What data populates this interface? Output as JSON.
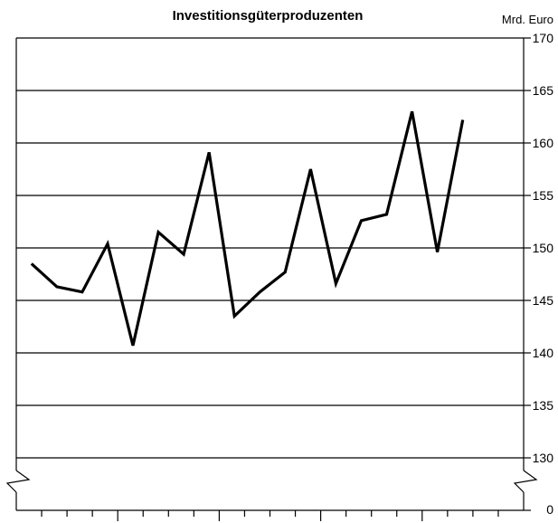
{
  "chart_data": {
    "type": "line",
    "title": "Investitionsgüterproduzenten",
    "unit_label": "Mrd. Euro",
    "y_ticks": [
      130,
      135,
      140,
      145,
      150,
      155,
      160,
      165,
      170
    ],
    "y_zero_label": "0",
    "ylim": [
      130,
      170
    ],
    "axis_break": true,
    "grid": true,
    "x_tick_count": 20,
    "x_major_every": 4,
    "series": [
      {
        "values": [
          148.5,
          146.3,
          145.8,
          150.4,
          140.7,
          151.5,
          149.4,
          159.1,
          143.5,
          145.8,
          147.7,
          157.5,
          146.6,
          152.6,
          153.2,
          163.0,
          149.6,
          162.2
        ]
      }
    ]
  }
}
